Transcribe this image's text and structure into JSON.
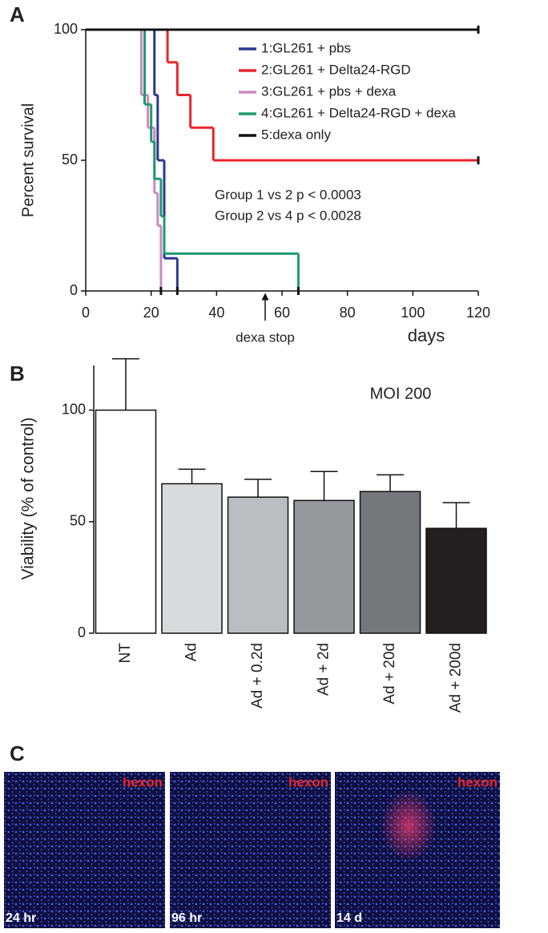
{
  "panels": [
    "A",
    "B",
    "C"
  ],
  "chart_data": [
    {
      "type": "survival",
      "ylabel": "Percent survival",
      "xlabel": "days",
      "xlim": [
        0,
        120
      ],
      "ylim": [
        0,
        100
      ],
      "xticks": [
        0,
        20,
        40,
        60,
        80,
        100,
        120
      ],
      "yticks": [
        0,
        50,
        100
      ],
      "annotations": [
        "Group 1 vs 2 p < 0.0003",
        "Group 2 vs 4 p < 0.0028",
        "dexa stop"
      ],
      "series": [
        {
          "name": "1:GL261 + pbs",
          "color": "#2b3990",
          "x": [
            0,
            21,
            22,
            24,
            28
          ],
          "values": [
            100,
            75,
            50,
            12.5,
            0
          ]
        },
        {
          "name": "2:GL261 + Delta24-RGD",
          "color": "#e8262b",
          "x": [
            0,
            25,
            28,
            32,
            39,
            120
          ],
          "values": [
            100,
            87.5,
            75,
            62.5,
            50,
            50
          ]
        },
        {
          "name": "3:GL261 + pbs + dexa",
          "color": "#c88bbf",
          "x": [
            0,
            17,
            19,
            21,
            22,
            23
          ],
          "values": [
            100,
            75,
            62.5,
            37.5,
            25,
            0
          ]
        },
        {
          "name": "4:GL261 + Delta24-RGD + dexa",
          "color": "#1f9a6d",
          "x": [
            0,
            18,
            20,
            21,
            23,
            24,
            65
          ],
          "values": [
            100,
            71.4,
            57.1,
            42.9,
            28.6,
            14.3,
            0
          ]
        },
        {
          "name": "5:dexa only",
          "color": "#111111",
          "x": [
            0,
            120
          ],
          "values": [
            100,
            100
          ]
        }
      ]
    },
    {
      "type": "bar",
      "ylabel": "Viability (% of control)",
      "annotation": "MOI 200",
      "categories": [
        "NT",
        "Ad",
        "Ad + 0.2d",
        "Ad + 2d",
        "Ad + 20d",
        "Ad + 200d"
      ],
      "values": [
        100,
        67,
        61,
        59.5,
        63.5,
        47
      ],
      "errors": [
        23,
        6.5,
        8,
        13,
        7.5,
        11.5
      ],
      "colors": [
        "#ffffff",
        "#d9dadc",
        "#bcbdc0",
        "#97989b",
        "#76777a",
        "#231f20"
      ],
      "ylim": [
        0,
        120
      ],
      "yticks": [
        0,
        50,
        100
      ]
    }
  ],
  "images": [
    {
      "stain": "hexon",
      "time": "24 hr"
    },
    {
      "stain": "hexon",
      "time": "96 hr"
    },
    {
      "stain": "hexon",
      "time": "14 d"
    }
  ]
}
